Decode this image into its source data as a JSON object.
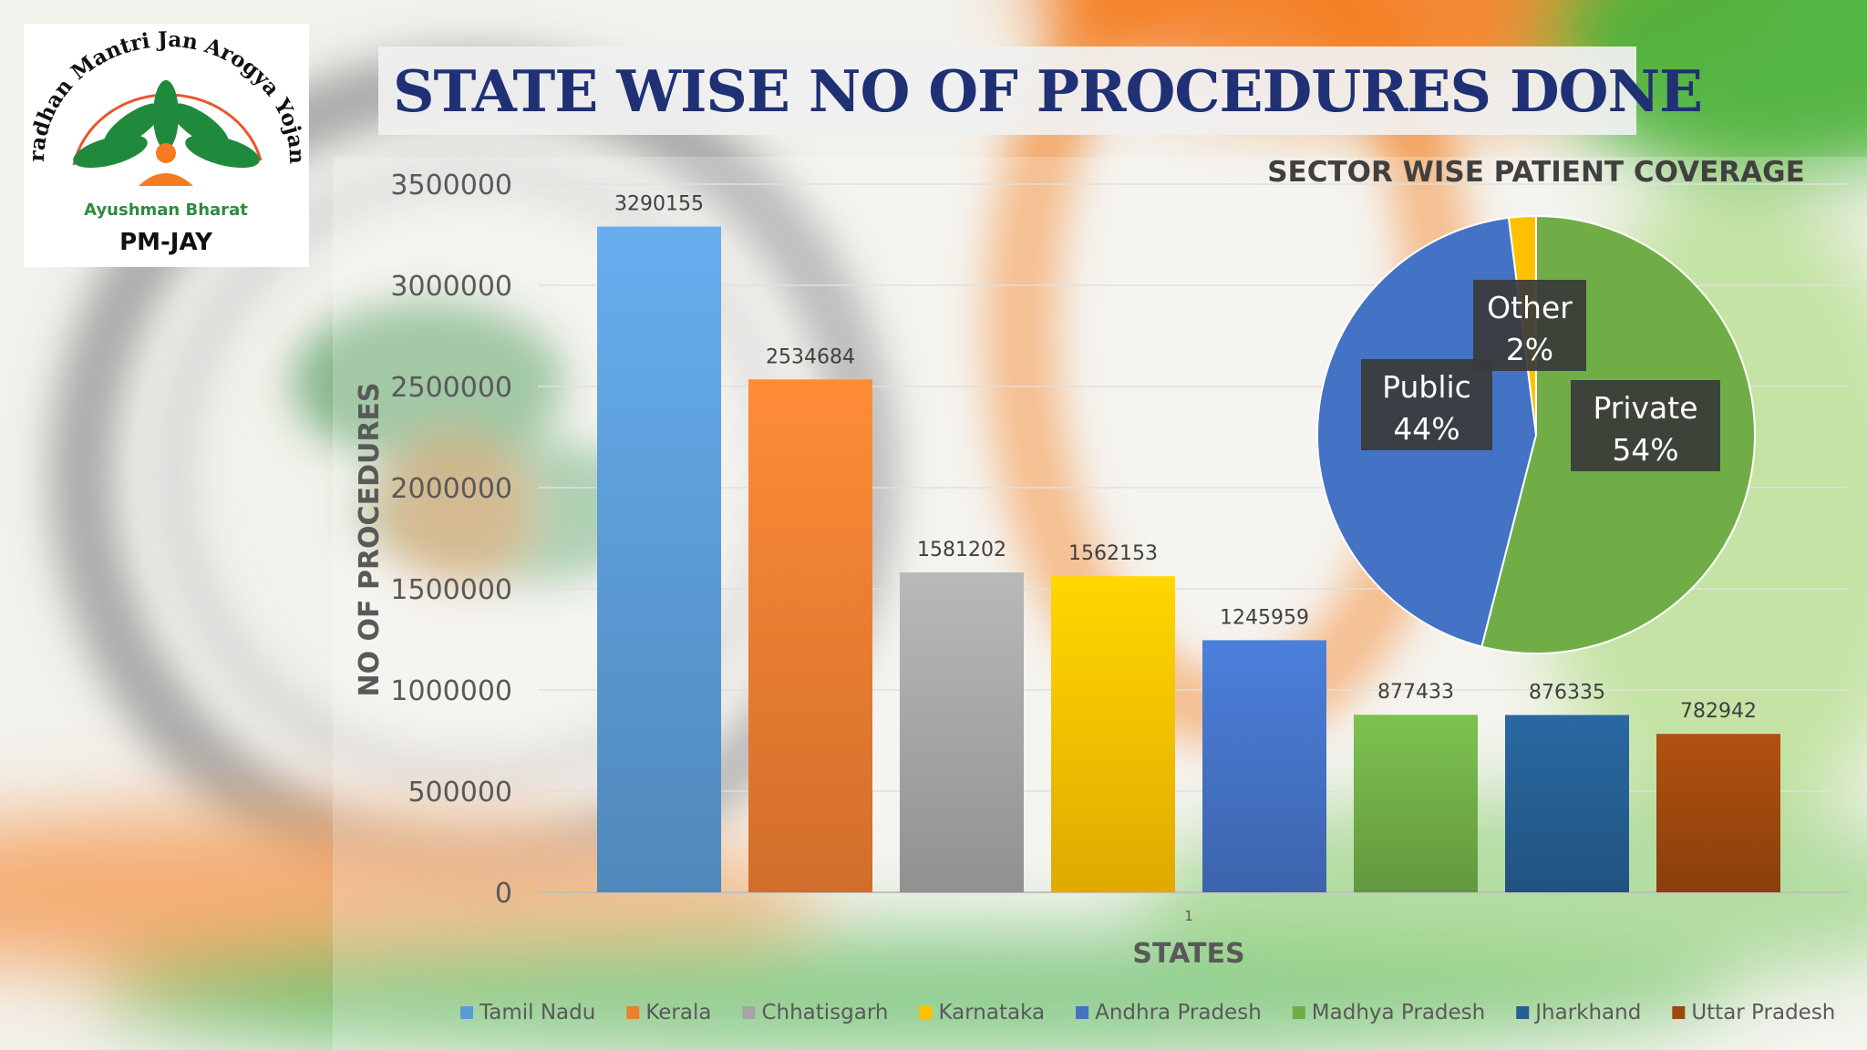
{
  "title": "STATE WISE NO OF PROCEDURES DONE",
  "logo": {
    "arc_text": "Pradhan Mantri Jan Arogya Yojana",
    "tagline": "Ayushman Bharat",
    "brand": "PM-JAY"
  },
  "colors": {
    "title": "#1f3174",
    "saffron": "#f47b20",
    "green": "#3aa635"
  },
  "chart_data": [
    {
      "type": "bar",
      "categories": [
        "1"
      ],
      "series": [
        {
          "name": "Tamil Nadu",
          "values": [
            3290155
          ],
          "color": "#5b9bd5"
        },
        {
          "name": "Kerala",
          "values": [
            2534684
          ],
          "color": "#ed7d31"
        },
        {
          "name": "Chhatisgarh",
          "values": [
            1581202
          ],
          "color": "#a5a5a5"
        },
        {
          "name": "Karnataka",
          "values": [
            1562153
          ],
          "color": "#ffc000"
        },
        {
          "name": "Andhra Pradesh",
          "values": [
            1245959
          ],
          "color": "#4472c4"
        },
        {
          "name": "Madhya Pradesh",
          "values": [
            877433
          ],
          "color": "#70ad47"
        },
        {
          "name": "Jharkhand",
          "values": [
            876335
          ],
          "color": "#255e91"
        },
        {
          "name": "Uttar Pradesh",
          "values": [
            782942
          ],
          "color": "#9e480e"
        }
      ],
      "data_labels": [
        "3290155",
        "2534684",
        "1581202",
        "1562153",
        "1245959",
        "877433",
        "876335",
        "782942"
      ],
      "xlabel": "STATES",
      "ylabel": "NO OF PROCEDURES",
      "ylim": [
        0,
        3500000
      ],
      "yticks": [
        "0",
        "500000",
        "1000000",
        "1500000",
        "2000000",
        "2500000",
        "3000000",
        "3500000"
      ],
      "grid": true,
      "legend": "bottom"
    },
    {
      "type": "pie",
      "title": "SECTOR WISE PATIENT COVERAGE",
      "slices": [
        {
          "label": "Private",
          "value": 54,
          "display": "54%",
          "color": "#70ad47"
        },
        {
          "label": "Public",
          "value": 44,
          "display": "44%",
          "color": "#4472c4"
        },
        {
          "label": "Other",
          "value": 2,
          "display": "2%",
          "color": "#ffc000"
        }
      ],
      "legend": "none"
    }
  ]
}
